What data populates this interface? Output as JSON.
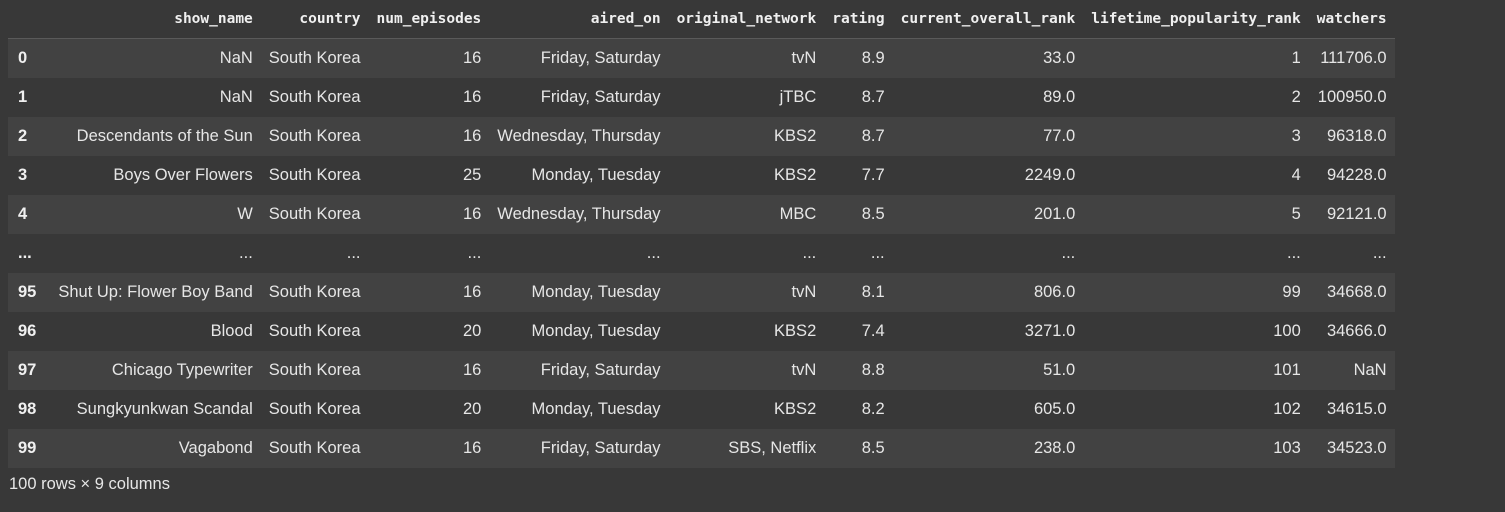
{
  "table": {
    "index_header": "",
    "columns": [
      "show_name",
      "country",
      "num_episodes",
      "aired_on",
      "original_network",
      "rating",
      "current_overall_rank",
      "lifetime_popularity_rank",
      "watchers"
    ],
    "rows": [
      {
        "index": "0",
        "cells": [
          "NaN",
          "South Korea",
          "16",
          "Friday, Saturday",
          "tvN",
          "8.9",
          "33.0",
          "1",
          "111706.0"
        ]
      },
      {
        "index": "1",
        "cells": [
          "NaN",
          "South Korea",
          "16",
          "Friday, Saturday",
          "jTBC",
          "8.7",
          "89.0",
          "2",
          "100950.0"
        ]
      },
      {
        "index": "2",
        "cells": [
          "Descendants of the Sun",
          "South Korea",
          "16",
          "Wednesday, Thursday",
          "KBS2",
          "8.7",
          "77.0",
          "3",
          "96318.0"
        ]
      },
      {
        "index": "3",
        "cells": [
          "Boys Over Flowers",
          "South Korea",
          "25",
          "Monday, Tuesday",
          "KBS2",
          "7.7",
          "2249.0",
          "4",
          "94228.0"
        ]
      },
      {
        "index": "4",
        "cells": [
          "W",
          "South Korea",
          "16",
          "Wednesday, Thursday",
          "MBC",
          "8.5",
          "201.0",
          "5",
          "92121.0"
        ]
      },
      {
        "index": "...",
        "cells": [
          "...",
          "...",
          "...",
          "...",
          "...",
          "...",
          "...",
          "...",
          "..."
        ]
      },
      {
        "index": "95",
        "cells": [
          "Shut Up: Flower Boy Band",
          "South Korea",
          "16",
          "Monday, Tuesday",
          "tvN",
          "8.1",
          "806.0",
          "99",
          "34668.0"
        ]
      },
      {
        "index": "96",
        "cells": [
          "Blood",
          "South Korea",
          "20",
          "Monday, Tuesday",
          "KBS2",
          "7.4",
          "3271.0",
          "100",
          "34666.0"
        ]
      },
      {
        "index": "97",
        "cells": [
          "Chicago Typewriter",
          "South Korea",
          "16",
          "Friday, Saturday",
          "tvN",
          "8.8",
          "51.0",
          "101",
          "NaN"
        ]
      },
      {
        "index": "98",
        "cells": [
          "Sungkyunkwan Scandal",
          "South Korea",
          "20",
          "Monday, Tuesday",
          "KBS2",
          "8.2",
          "605.0",
          "102",
          "34615.0"
        ]
      },
      {
        "index": "99",
        "cells": [
          "Vagabond",
          "South Korea",
          "16",
          "Friday, Saturday",
          "SBS, Netflix",
          "8.5",
          "238.0",
          "103",
          "34523.0"
        ]
      }
    ]
  },
  "footer": {
    "shape_text": "100 rows × 9 columns"
  }
}
